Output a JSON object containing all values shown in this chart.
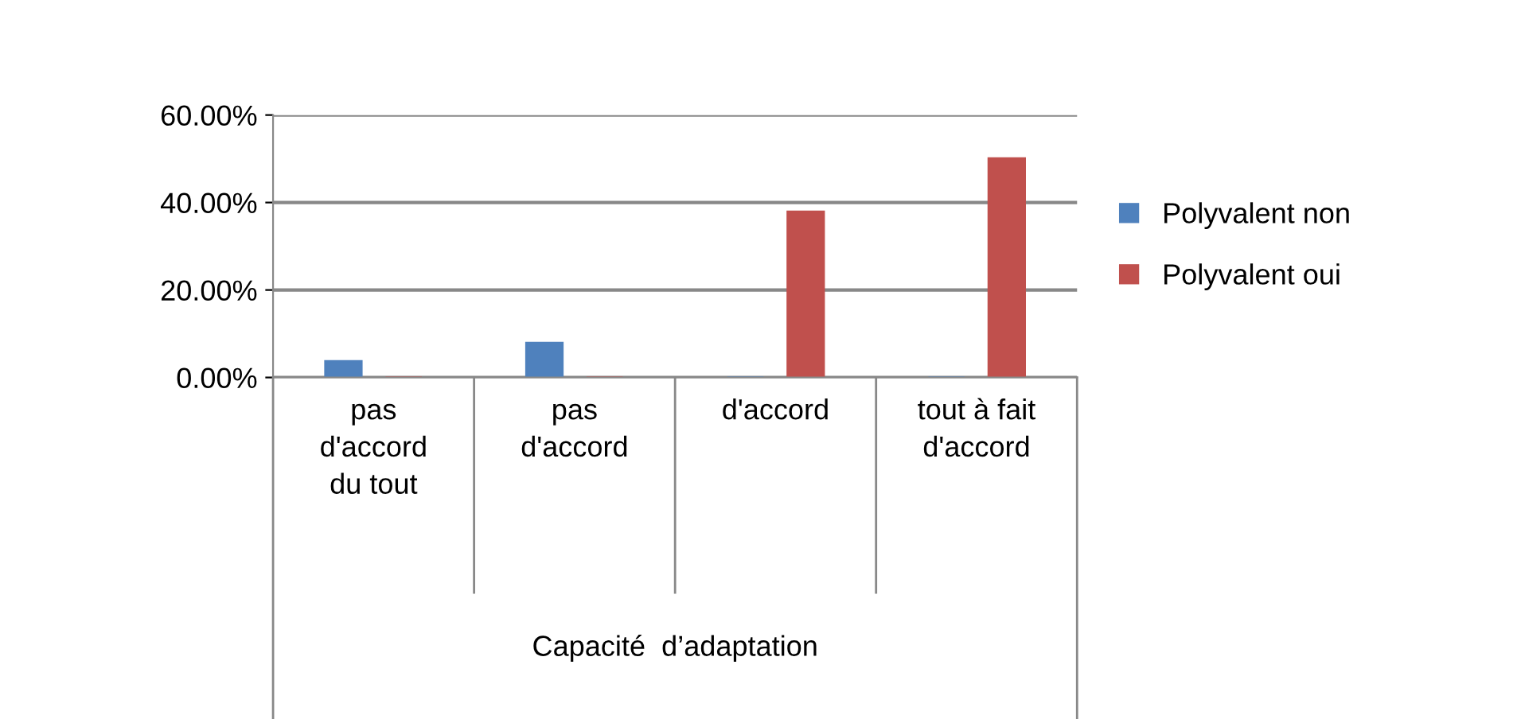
{
  "chart_data": {
    "type": "bar",
    "categories": [
      "pas\nd'accord\ndu tout",
      "pas\nd'accord",
      "d'accord",
      "tout à fait\nd'accord"
    ],
    "xlabel": "Capacité  d’adaptation",
    "series": [
      {
        "name": "Polyvalent non",
        "color": "#4f81bd",
        "values": [
          3.7,
          7.9,
          0,
          0
        ]
      },
      {
        "name": "Polyvalent oui",
        "color": "#c0504d",
        "values": [
          0,
          0,
          37.9,
          50.1
        ]
      }
    ],
    "ylim": [
      0,
      60
    ],
    "yticks": [
      {
        "value": 0,
        "label": "0.00%"
      },
      {
        "value": 20,
        "label": "20.00%"
      },
      {
        "value": 40,
        "label": "40.00%"
      },
      {
        "value": 60,
        "label": "60.00%"
      }
    ],
    "grid": "y",
    "legend": "right"
  }
}
